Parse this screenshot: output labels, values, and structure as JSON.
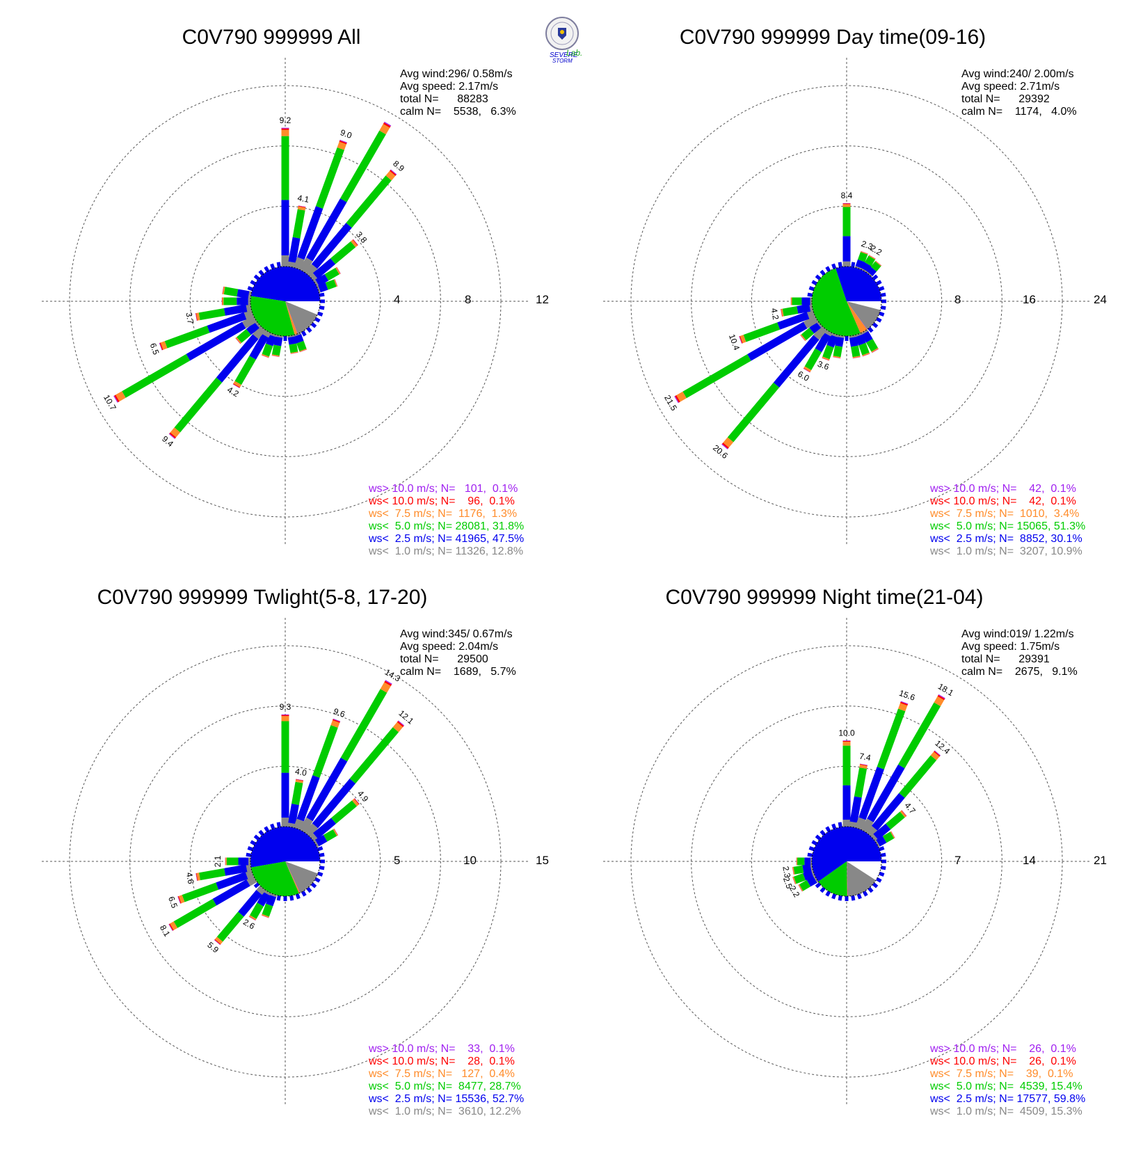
{
  "logo": {
    "name": "Severe Storm Lab.",
    "text_severe": "SEVERE",
    "text_storm": "STORM",
    "text_lab": "Lab."
  },
  "colors": {
    "gt10": "#a020f0",
    "lt10": "#ff0000",
    "lt7_5": "#ff8c2a",
    "lt5": "#00cc00",
    "lt2_5": "#0000ee",
    "lt1": "#888888",
    "calm": "#ffffff",
    "grid": "#555555"
  },
  "chart_data": [
    {
      "type": "wind-rose",
      "title": "C0V790 999999 All",
      "stats": [
        "Avg wind:296/ 0.58m/s",
        "Avg speed: 2.17m/s",
        "total N=      88283",
        "calm N=    5538,   6.3%"
      ],
      "ring_ticks": [
        "4",
        "8",
        "12"
      ],
      "rmax": 12,
      "grid": true,
      "legend": [
        {
          "key": "gt10",
          "text": "ws> 10.0 m/s; N=   101,  0.1%"
        },
        {
          "key": "lt10",
          "text": "ws< 10.0 m/s; N=    96,  0.1%"
        },
        {
          "key": "lt7_5",
          "text": "ws<  7.5 m/s; N=  1176,  1.3%"
        },
        {
          "key": "lt5",
          "text": "ws<  5.0 m/s; N= 28081, 31.8%"
        },
        {
          "key": "lt2_5",
          "text": "ws<  2.5 m/s; N= 41965, 47.5%"
        },
        {
          "key": "lt1",
          "text": "ws<  1.0 m/s; N= 11326, 12.8%"
        }
      ],
      "center_pie": [
        {
          "key": "calm",
          "value": 6.3
        },
        {
          "key": "lt1",
          "value": 12.8
        },
        {
          "key": "gt10",
          "value": 0.1
        },
        {
          "key": "lt10",
          "value": 0.1
        },
        {
          "key": "lt7_5",
          "value": 1.3
        },
        {
          "key": "lt5",
          "value": 31.8
        },
        {
          "key": "lt2_5",
          "value": 47.5
        }
      ],
      "bars": [
        {
          "dir": 0,
          "total": 9.2,
          "label": "9.2"
        },
        {
          "dir": 10,
          "total": 4.1,
          "label": "4.1"
        },
        {
          "dir": 20,
          "total": 9.0,
          "label": "9.0"
        },
        {
          "dir": 30,
          "total": 11.3,
          "label": ""
        },
        {
          "dir": 40,
          "total": 8.9,
          "label": "8.9"
        },
        {
          "dir": 50,
          "total": 3.8,
          "label": "3.8"
        },
        {
          "dir": 60,
          "total": 1.8,
          "label": ""
        },
        {
          "dir": 70,
          "total": 1.3,
          "label": ""
        },
        {
          "dir": 160,
          "total": 1.2,
          "label": ""
        },
        {
          "dir": 170,
          "total": 1.2,
          "label": ""
        },
        {
          "dir": 190,
          "total": 1.4,
          "label": ""
        },
        {
          "dir": 200,
          "total": 1.6,
          "label": ""
        },
        {
          "dir": 210,
          "total": 4.2,
          "label": "4.2"
        },
        {
          "dir": 220,
          "total": 9.4,
          "label": "9.4"
        },
        {
          "dir": 230,
          "total": 1.8,
          "label": ""
        },
        {
          "dir": 240,
          "total": 10.7,
          "label": "10.7"
        },
        {
          "dir": 250,
          "total": 6.5,
          "label": "6.5"
        },
        {
          "dir": 260,
          "total": 3.7,
          "label": "3.7"
        },
        {
          "dir": 270,
          "total": 1.9,
          "label": ""
        },
        {
          "dir": 280,
          "total": 1.9,
          "label": ""
        }
      ]
    },
    {
      "type": "wind-rose",
      "title": "C0V790 999999 Day time(09-16)",
      "stats": [
        "Avg wind:240/ 2.00m/s",
        "Avg speed: 2.71m/s",
        "total N=      29392",
        "calm N=    1174,   4.0%"
      ],
      "ring_ticks": [
        "8",
        "16",
        "24"
      ],
      "rmax": 24,
      "grid": true,
      "legend": [
        {
          "key": "gt10",
          "text": "ws> 10.0 m/s; N=    42,  0.1%"
        },
        {
          "key": "lt10",
          "text": "ws< 10.0 m/s; N=    42,  0.1%"
        },
        {
          "key": "lt7_5",
          "text": "ws<  7.5 m/s; N=  1010,  3.4%"
        },
        {
          "key": "lt5",
          "text": "ws<  5.0 m/s; N= 15065, 51.3%"
        },
        {
          "key": "lt2_5",
          "text": "ws<  2.5 m/s; N=  8852, 30.1%"
        },
        {
          "key": "lt1",
          "text": "ws<  1.0 m/s; N=  3207, 10.9%"
        }
      ],
      "center_pie": [
        {
          "key": "calm",
          "value": 4.0
        },
        {
          "key": "lt1",
          "value": 10.9
        },
        {
          "key": "gt10",
          "value": 0.1
        },
        {
          "key": "lt10",
          "value": 0.1
        },
        {
          "key": "lt7_5",
          "value": 3.4
        },
        {
          "key": "lt5",
          "value": 51.3
        },
        {
          "key": "lt2_5",
          "value": 30.1
        }
      ],
      "bars": [
        {
          "dir": 0,
          "total": 8.4,
          "label": "8.4"
        },
        {
          "dir": 20,
          "total": 2.3,
          "label": "2.3"
        },
        {
          "dir": 30,
          "total": 2.2,
          "label": "2.2"
        },
        {
          "dir": 40,
          "total": 2.0,
          "label": ""
        },
        {
          "dir": 150,
          "total": 3.0,
          "label": ""
        },
        {
          "dir": 160,
          "total": 3.0,
          "label": ""
        },
        {
          "dir": 170,
          "total": 3.0,
          "label": ""
        },
        {
          "dir": 190,
          "total": 3.0,
          "label": ""
        },
        {
          "dir": 200,
          "total": 3.6,
          "label": "3.6"
        },
        {
          "dir": 210,
          "total": 6.0,
          "label": "6.0"
        },
        {
          "dir": 220,
          "total": 20.6,
          "label": "20.6"
        },
        {
          "dir": 230,
          "total": 3.0,
          "label": ""
        },
        {
          "dir": 240,
          "total": 21.5,
          "label": "21.5"
        },
        {
          "dir": 250,
          "total": 10.4,
          "label": "10.4"
        },
        {
          "dir": 260,
          "total": 4.2,
          "label": "4.2"
        },
        {
          "dir": 270,
          "total": 2.8,
          "label": ""
        }
      ]
    },
    {
      "type": "wind-rose",
      "title": "C0V790 999999 Twlight(5-8, 17-20)",
      "stats": [
        "Avg wind:345/ 0.67m/s",
        "Avg speed: 2.04m/s",
        "total N=      29500",
        "calm N=    1689,   5.7%"
      ],
      "ring_ticks": [
        "5",
        "10",
        "15"
      ],
      "rmax": 15,
      "grid": true,
      "legend": [
        {
          "key": "gt10",
          "text": "ws> 10.0 m/s; N=    33,  0.1%"
        },
        {
          "key": "lt10",
          "text": "ws< 10.0 m/s; N=    28,  0.1%"
        },
        {
          "key": "lt7_5",
          "text": "ws<  7.5 m/s; N=   127,  0.4%"
        },
        {
          "key": "lt5",
          "text": "ws<  5.0 m/s; N=  8477, 28.7%"
        },
        {
          "key": "lt2_5",
          "text": "ws<  2.5 m/s; N= 15536, 52.7%"
        },
        {
          "key": "lt1",
          "text": "ws<  1.0 m/s; N=  3610, 12.2%"
        }
      ],
      "center_pie": [
        {
          "key": "calm",
          "value": 5.7
        },
        {
          "key": "lt1",
          "value": 12.2
        },
        {
          "key": "gt10",
          "value": 0.1
        },
        {
          "key": "lt10",
          "value": 0.1
        },
        {
          "key": "lt7_5",
          "value": 0.4
        },
        {
          "key": "lt5",
          "value": 28.7
        },
        {
          "key": "lt2_5",
          "value": 52.7
        }
      ],
      "bars": [
        {
          "dir": 0,
          "total": 9.3,
          "label": "9.3"
        },
        {
          "dir": 10,
          "total": 4.0,
          "label": "4.0"
        },
        {
          "dir": 20,
          "total": 9.6,
          "label": "9.6"
        },
        {
          "dir": 30,
          "total": 14.3,
          "label": "14.3"
        },
        {
          "dir": 40,
          "total": 12.1,
          "label": "12.1"
        },
        {
          "dir": 50,
          "total": 4.9,
          "label": "4.9"
        },
        {
          "dir": 60,
          "total": 2.0,
          "label": ""
        },
        {
          "dir": 200,
          "total": 2.0,
          "label": ""
        },
        {
          "dir": 210,
          "total": 2.6,
          "label": "2.6"
        },
        {
          "dir": 220,
          "total": 5.9,
          "label": "5.9"
        },
        {
          "dir": 240,
          "total": 8.1,
          "label": "8.1"
        },
        {
          "dir": 250,
          "total": 6.5,
          "label": "6.5"
        },
        {
          "dir": 260,
          "total": 4.6,
          "label": "4.6"
        },
        {
          "dir": 270,
          "total": 2.1,
          "label": "2.1"
        }
      ]
    },
    {
      "type": "wind-rose",
      "title": "C0V790 999999 Night time(21-04)",
      "stats": [
        "Avg wind:019/ 1.22m/s",
        "Avg speed: 1.75m/s",
        "total N=      29391",
        "calm N=    2675,   9.1%"
      ],
      "ring_ticks": [
        "7",
        "14",
        "21"
      ],
      "rmax": 21,
      "grid": true,
      "legend": [
        {
          "key": "gt10",
          "text": "ws> 10.0 m/s; N=    26,  0.1%"
        },
        {
          "key": "lt10",
          "text": "ws< 10.0 m/s; N=    26,  0.1%"
        },
        {
          "key": "lt7_5",
          "text": "ws<  7.5 m/s; N=    39,  0.1%"
        },
        {
          "key": "lt5",
          "text": "ws<  5.0 m/s; N=  4539, 15.4%"
        },
        {
          "key": "lt2_5",
          "text": "ws<  2.5 m/s; N= 17577, 59.8%"
        },
        {
          "key": "lt1",
          "text": "ws<  1.0 m/s; N=  4509, 15.3%"
        }
      ],
      "center_pie": [
        {
          "key": "calm",
          "value": 9.1
        },
        {
          "key": "lt1",
          "value": 15.3
        },
        {
          "key": "gt10",
          "value": 0.1
        },
        {
          "key": "lt10",
          "value": 0.1
        },
        {
          "key": "lt7_5",
          "value": 0.1
        },
        {
          "key": "lt5",
          "value": 15.4
        },
        {
          "key": "lt2_5",
          "value": 59.8
        }
      ],
      "bars": [
        {
          "dir": 0,
          "total": 10.0,
          "label": "10.0"
        },
        {
          "dir": 10,
          "total": 7.4,
          "label": "7.4"
        },
        {
          "dir": 20,
          "total": 15.6,
          "label": "15.6"
        },
        {
          "dir": 30,
          "total": 18.1,
          "label": "18.1"
        },
        {
          "dir": 40,
          "total": 12.4,
          "label": "12.4"
        },
        {
          "dir": 50,
          "total": 4.7,
          "label": "4.7"
        },
        {
          "dir": 60,
          "total": 2.2,
          "label": ""
        },
        {
          "dir": 240,
          "total": 2.2,
          "label": "2.2"
        },
        {
          "dir": 250,
          "total": 2.5,
          "label": "2.5"
        },
        {
          "dir": 260,
          "total": 2.3,
          "label": "2.3"
        },
        {
          "dir": 270,
          "total": 1.8,
          "label": ""
        }
      ]
    }
  ]
}
